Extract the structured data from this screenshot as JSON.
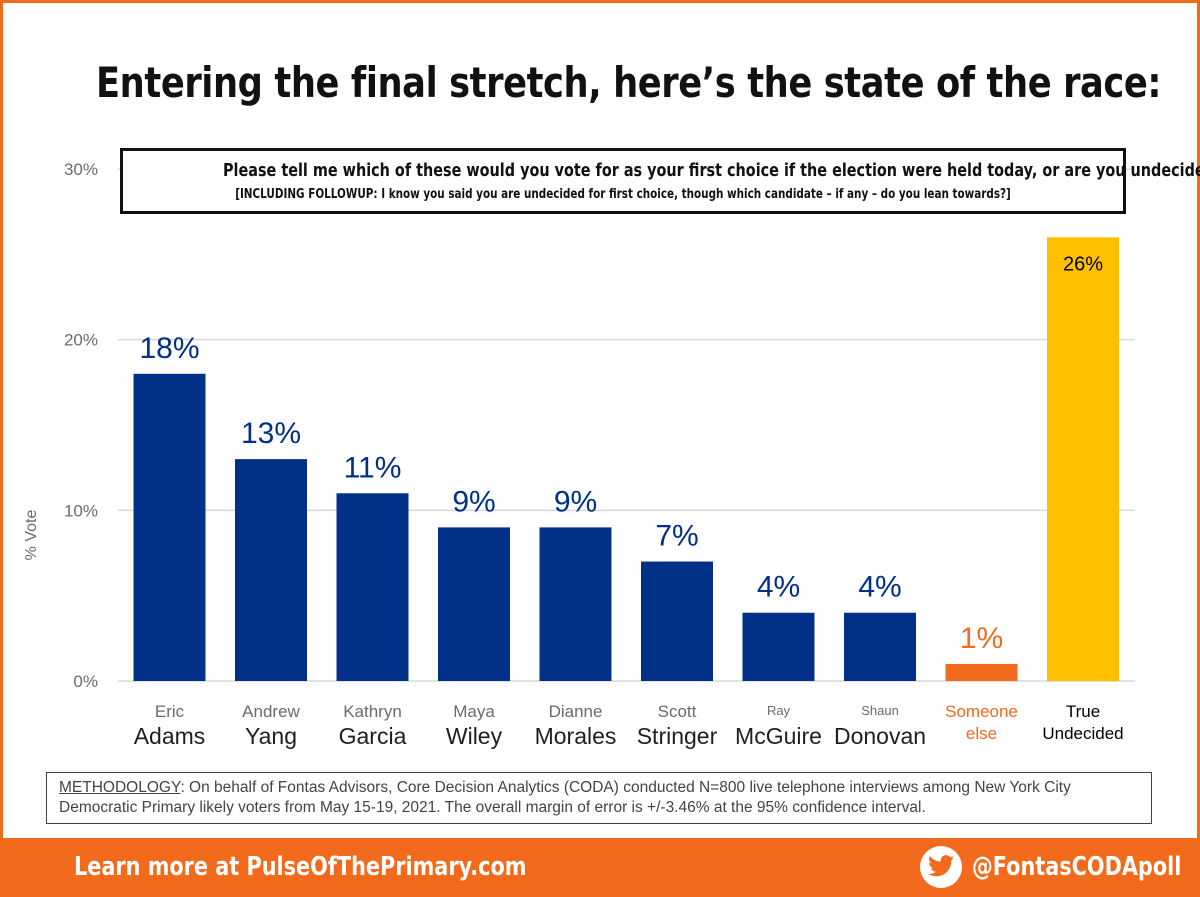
{
  "title": "Entering the final stretch, here’s the state of the race:",
  "question": {
    "main": "Please tell me which of these would you vote for as your first choice if the election were held today, or are you undecided?",
    "sub": "[INCLUDING FOLLOWUP: I know you said you are undecided for first choice, though which candidate – if any – do you lean towards?]"
  },
  "chart_data": {
    "type": "bar",
    "ylabel": "% Vote",
    "ylim": [
      0,
      30
    ],
    "yticks": [
      0,
      10,
      20,
      30
    ],
    "ytick_labels": [
      "0%",
      "10%",
      "20%",
      "30%"
    ],
    "grid": true,
    "categories": [
      {
        "top": "Eric",
        "bottom": "Adams",
        "value": 18,
        "label": "18%",
        "color": "#003087"
      },
      {
        "top": "Andrew",
        "bottom": "Yang",
        "value": 13,
        "label": "13%",
        "color": "#003087"
      },
      {
        "top": "Kathryn",
        "bottom": "Garcia",
        "value": 11,
        "label": "11%",
        "color": "#003087"
      },
      {
        "top": "Maya",
        "bottom": "Wiley",
        "value": 9,
        "label": "9%",
        "color": "#003087"
      },
      {
        "top": "Dianne",
        "bottom": "Morales",
        "value": 9,
        "label": "9%",
        "color": "#003087"
      },
      {
        "top": "Scott",
        "bottom": "Stringer",
        "value": 7,
        "label": "7%",
        "color": "#003087"
      },
      {
        "top": "Ray",
        "bottom": "McGuire",
        "value": 4,
        "label": "4%",
        "color": "#003087"
      },
      {
        "top": "Shaun",
        "bottom": "Donovan",
        "value": 4,
        "label": "4%",
        "color": "#003087"
      },
      {
        "top": "Someone",
        "bottom": "else",
        "value": 1,
        "label": "1%",
        "color": "#f26a1b"
      },
      {
        "top": "True",
        "bottom": "Undecided",
        "value": 26,
        "label": "26%",
        "color": "#ffc000"
      }
    ]
  },
  "methodology": {
    "label": "METHODOLOGY",
    "text": ": On behalf of Fontas Advisors, Core Decision Analytics (CODA) conducted N=800 live telephone interviews among New York City Democratic Primary likely voters from May 15-19, 2021. The overall margin of error is +/-3.46% at the 95% confidence interval."
  },
  "footer": {
    "left": "Learn more at PulseOfThePrimary.com",
    "right": "@FontasCODApoll"
  },
  "colors": {
    "accent": "#f26a1b",
    "candidate_bar": "#003087",
    "undecided_bar": "#ffc000"
  },
  "icons": {
    "twitter": "twitter-bird-icon"
  }
}
